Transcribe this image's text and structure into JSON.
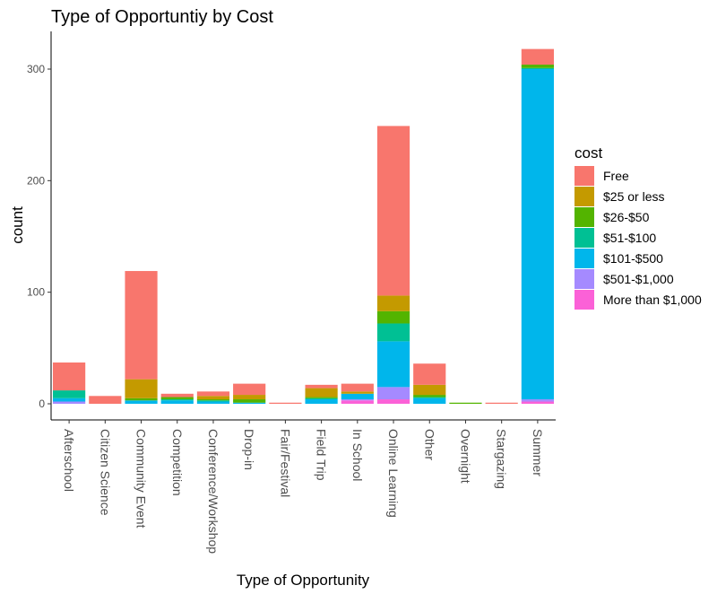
{
  "chart_data": {
    "type": "bar",
    "stacked": true,
    "title": "Type of Opportuntiy by Cost",
    "xlabel": "Type of Opportunity",
    "ylabel": "count",
    "ylim": [
      0,
      330
    ],
    "yticks": [
      0,
      100,
      200,
      300
    ],
    "grid": false,
    "legend_position": "right",
    "legend_title": "cost",
    "categories": [
      "Afterschool",
      "Citizen Science",
      "Community Event",
      "Competition",
      "Conference/Workshop",
      "Drop-in",
      "Fair/Festival",
      "Field Trip",
      "In School",
      "Online Learning",
      "Other",
      "Overnight",
      "Stargazing",
      "Summer"
    ],
    "series": [
      {
        "name": "Free",
        "color": "#F8766D",
        "values": [
          25,
          7,
          97,
          3,
          4,
          10,
          1,
          3,
          7,
          152,
          19,
          0,
          1,
          14
        ]
      },
      {
        "name": "$25 or less",
        "color": "#C49A00",
        "values": [
          0,
          0,
          17,
          0,
          3,
          4,
          0,
          8,
          2,
          14,
          9,
          0,
          0,
          0
        ]
      },
      {
        "name": "$26-$50",
        "color": "#53B400",
        "values": [
          0,
          0,
          2,
          2,
          1,
          3,
          0,
          1,
          0,
          11,
          2,
          1,
          0,
          3
        ]
      },
      {
        "name": "$51-$100",
        "color": "#00C094",
        "values": [
          7,
          0,
          0,
          1,
          1,
          0,
          0,
          1,
          0,
          16,
          1,
          0,
          0,
          1
        ]
      },
      {
        "name": "$101-$500",
        "color": "#00B6EB",
        "values": [
          3,
          0,
          3,
          3,
          2,
          1,
          0,
          4,
          5,
          41,
          5,
          0,
          0,
          296
        ]
      },
      {
        "name": "$501-$1,000",
        "color": "#A58AFF",
        "values": [
          2,
          0,
          0,
          0,
          0,
          0,
          0,
          0,
          1,
          11,
          0,
          0,
          0,
          2
        ]
      },
      {
        "name": "More than $1,000",
        "color": "#FB61D7",
        "values": [
          0,
          0,
          0,
          0,
          0,
          0,
          0,
          0,
          3,
          4,
          0,
          0,
          0,
          2
        ]
      }
    ]
  }
}
